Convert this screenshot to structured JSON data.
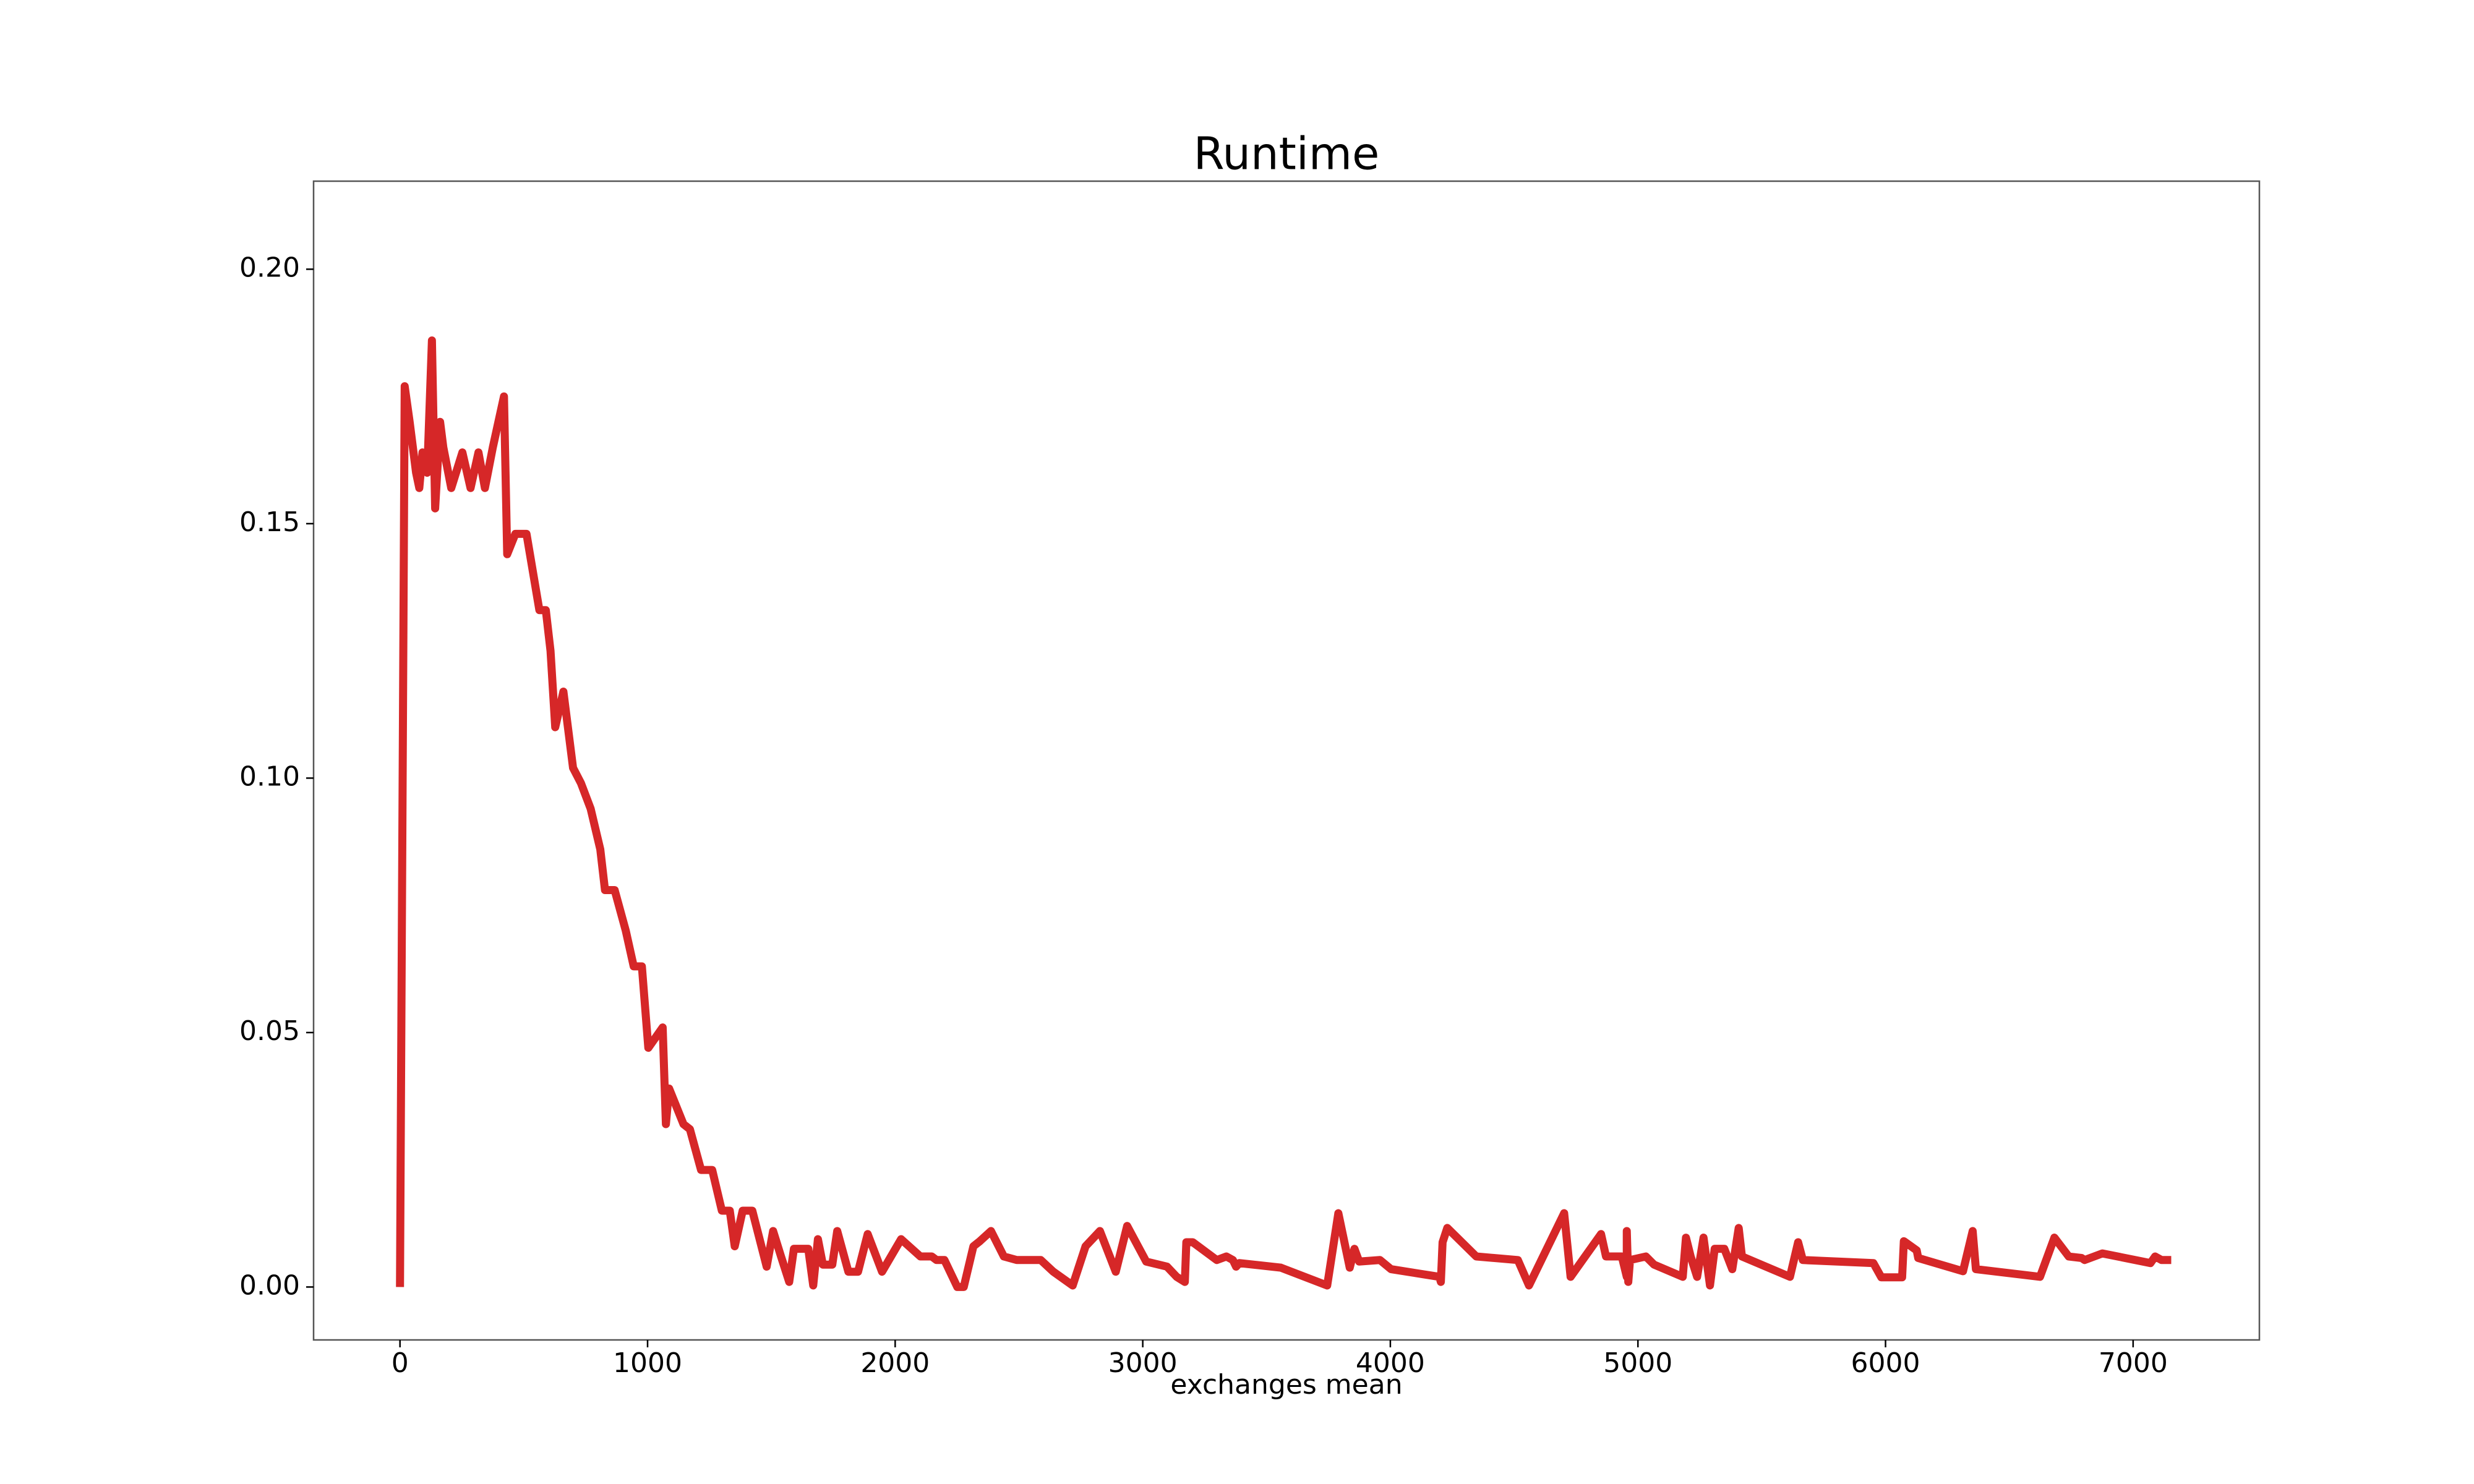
{
  "chart_data": {
    "type": "line",
    "title": "Runtime",
    "x_label": "exchanges mean",
    "series": [
      {
        "color": "#d62728",
        "x": [
          0,
          19,
          39,
          65,
          78,
          91,
          110,
          129,
          142,
          162,
          175,
          207,
          252,
          285,
          317,
          343,
          375,
          420,
          433,
          466,
          511,
          563,
          589,
          608,
          627,
          660,
          699,
          731,
          770,
          809,
          828,
          867,
          912,
          944,
          977,
          1003,
          1061,
          1074,
          1087,
          1145,
          1171,
          1216,
          1261,
          1300,
          1332,
          1352,
          1384,
          1423,
          1481,
          1507,
          1539,
          1572,
          1591,
          1649,
          1669,
          1688,
          1708,
          1746,
          1766,
          1811,
          1850,
          1889,
          1947,
          2024,
          2102,
          2148,
          2167,
          2199,
          2251,
          2277,
          2316,
          2342,
          2387,
          2439,
          2491,
          2588,
          2639,
          2717,
          2769,
          2827,
          2891,
          2937,
          3014,
          3098,
          3137,
          3170,
          3176,
          3202,
          3299,
          3338,
          3364,
          3377,
          3390,
          3558,
          3745,
          3790,
          3836,
          3855,
          3874,
          3958,
          4003,
          4198,
          4204,
          4211,
          4230,
          4347,
          4515,
          4560,
          4702,
          4728,
          4851,
          4871,
          4935,
          4955,
          4955,
          4961,
          4968,
          5032,
          5065,
          5181,
          5194,
          5213,
          5239,
          5265,
          5291,
          5310,
          5349,
          5381,
          5407,
          5420,
          5614,
          5647,
          5666,
          5951,
          5983,
          6067,
          6074,
          6126,
          6132,
          6313,
          6352,
          6365,
          6624,
          6682,
          6740,
          6792,
          6804,
          6876,
          7070,
          7089,
          7115,
          7154
        ],
        "values": [
          0,
          0.177,
          0.17,
          0.16,
          0.157,
          0.164,
          0.16,
          0.186,
          0.153,
          0.17,
          0.165,
          0.157,
          0.164,
          0.157,
          0.164,
          0.157,
          0.165,
          0.175,
          0.144,
          0.148,
          0.148,
          0.133,
          0.133,
          0.125,
          0.11,
          0.117,
          0.102,
          0.099,
          0.094,
          0.086,
          0.078,
          0.078,
          0.07,
          0.063,
          0.063,
          0.047,
          0.051,
          0.032,
          0.039,
          0.032,
          0.031,
          0.023,
          0.023,
          0.015,
          0.015,
          0.008,
          0.015,
          0.015,
          0.004,
          0.011,
          0.006,
          0.001,
          0.0075,
          0.0075,
          0.0003,
          0.0094,
          0.0044,
          0.0044,
          0.011,
          0.003,
          0.003,
          0.0104,
          0.003,
          0.0094,
          0.006,
          0.006,
          0.0053,
          0.0053,
          0,
          0,
          0.008,
          0.009,
          0.011,
          0.006,
          0.0053,
          0.0053,
          0.003,
          0.0003,
          0.008,
          0.011,
          0.003,
          0.012,
          0.005,
          0.004,
          0.002,
          0.001,
          0.0088,
          0.0088,
          0.0053,
          0.006,
          0.0053,
          0.004,
          0.0047,
          0.0038,
          0.0003,
          0.0145,
          0.0038,
          0.0075,
          0.005,
          0.0053,
          0.0035,
          0.002,
          0.001,
          0.0088,
          0.0116,
          0.006,
          0.0053,
          0.0003,
          0.0145,
          0.002,
          0.0104,
          0.006,
          0.006,
          0.002,
          0.011,
          0.001,
          0.0053,
          0.006,
          0.0044,
          0.002,
          0.0097,
          0.006,
          0.002,
          0.0097,
          0.0003,
          0.0075,
          0.0075,
          0.0035,
          0.0116,
          0.006,
          0.002,
          0.0088,
          0.0053,
          0.0047,
          0.0019,
          0.0019,
          0.009,
          0.0072,
          0.0057,
          0.0031,
          0.011,
          0.0035,
          0.002,
          0.0097,
          0.006,
          0.0057,
          0.0053,
          0.0066,
          0.0047,
          0.006,
          0.0053,
          0.0053
        ]
      }
    ],
    "xlim": [
      -349,
      7510
    ],
    "ylim": [
      -0.0104,
      0.2173
    ],
    "xticks": [
      0,
      1000,
      2000,
      3000,
      4000,
      5000,
      6000,
      7000
    ],
    "yticks": [
      {
        "value": 0,
        "label": "0.00"
      },
      {
        "value": 0.05,
        "label": "0.05"
      },
      {
        "value": 0.1,
        "label": "0.10"
      },
      {
        "value": 0.15,
        "label": "0.15"
      },
      {
        "value": 0.2,
        "label": "0.20"
      }
    ],
    "grid": false
  }
}
